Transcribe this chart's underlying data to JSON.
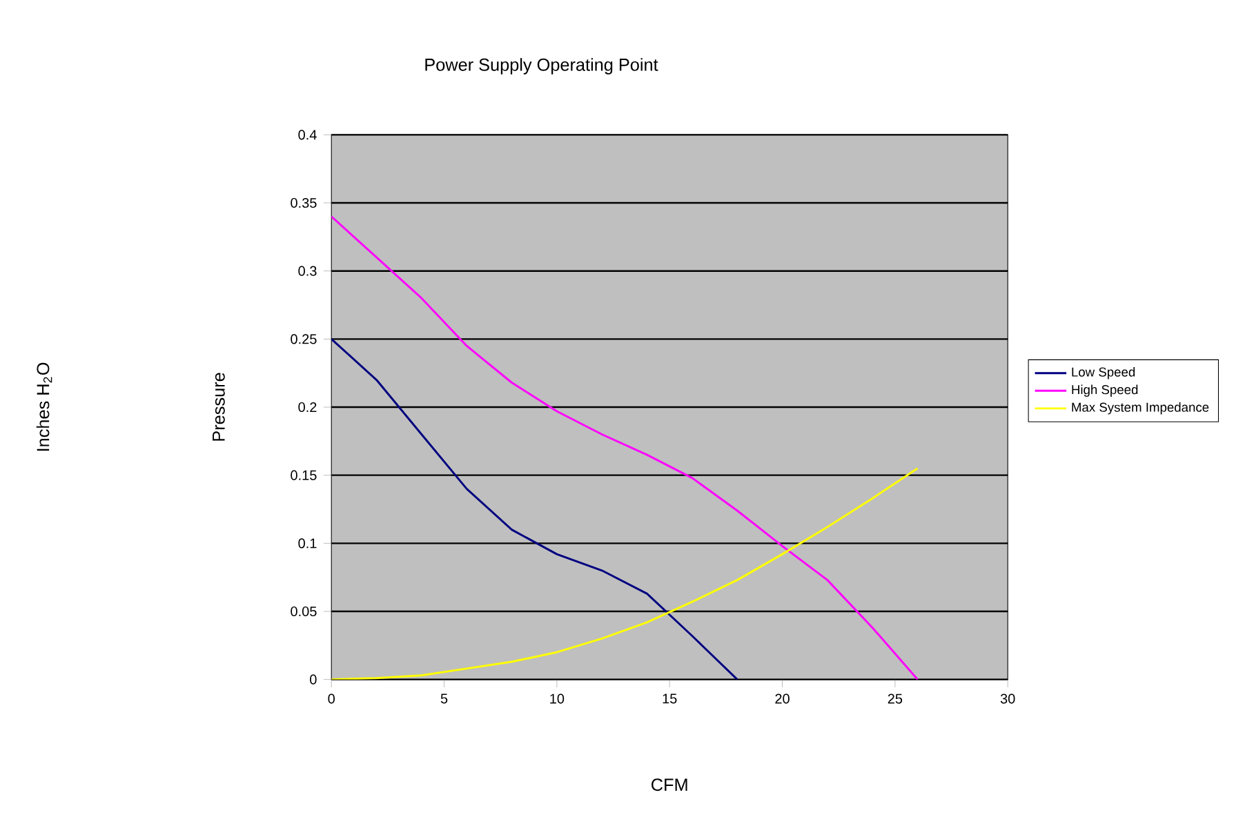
{
  "chart_data": {
    "type": "line",
    "title": "Power Supply Operating Point",
    "xlabel": "CFM",
    "ylabel": "Pressure",
    "annotations": [
      "Inches H$_{2}$O"
    ],
    "series": [
      {
        "name": "Low Speed",
        "color": "#000080",
        "x": [
          0,
          2,
          4,
          6,
          8,
          10,
          12,
          14,
          16,
          18
        ],
        "values": [
          0.25,
          0.22,
          0.18,
          0.14,
          0.11,
          0.092,
          0.08,
          0.063,
          0.032,
          0
        ]
      },
      {
        "name": "High Speed",
        "color": "#ff00ff",
        "x": [
          0,
          2,
          4,
          6,
          8,
          10,
          12,
          14,
          16,
          18,
          20,
          22,
          24,
          26
        ],
        "values": [
          0.34,
          0.31,
          0.28,
          0.245,
          0.218,
          0.197,
          0.18,
          0.165,
          0.148,
          0.124,
          0.098,
          0.073,
          0.038,
          0
        ]
      },
      {
        "name": "Max System Impedance",
        "color": "#ffff00",
        "x": [
          0,
          2,
          4,
          6,
          8,
          10,
          12,
          14,
          16,
          18,
          20,
          22,
          24,
          26
        ],
        "values": [
          0,
          0.001,
          0.003,
          0.008,
          0.013,
          0.02,
          0.03,
          0.042,
          0.057,
          0.073,
          0.092,
          0.112,
          0.133,
          0.155
        ]
      }
    ],
    "xlim": [
      0,
      30
    ],
    "xticks": [
      0,
      5,
      10,
      15,
      20,
      25,
      30
    ],
    "ylim": [
      0,
      0.4
    ],
    "yticks": [
      0,
      0.05,
      0.1,
      0.15,
      0.2,
      0.25,
      0.3,
      0.35,
      0.4
    ],
    "grid": "y",
    "legend": "right"
  }
}
